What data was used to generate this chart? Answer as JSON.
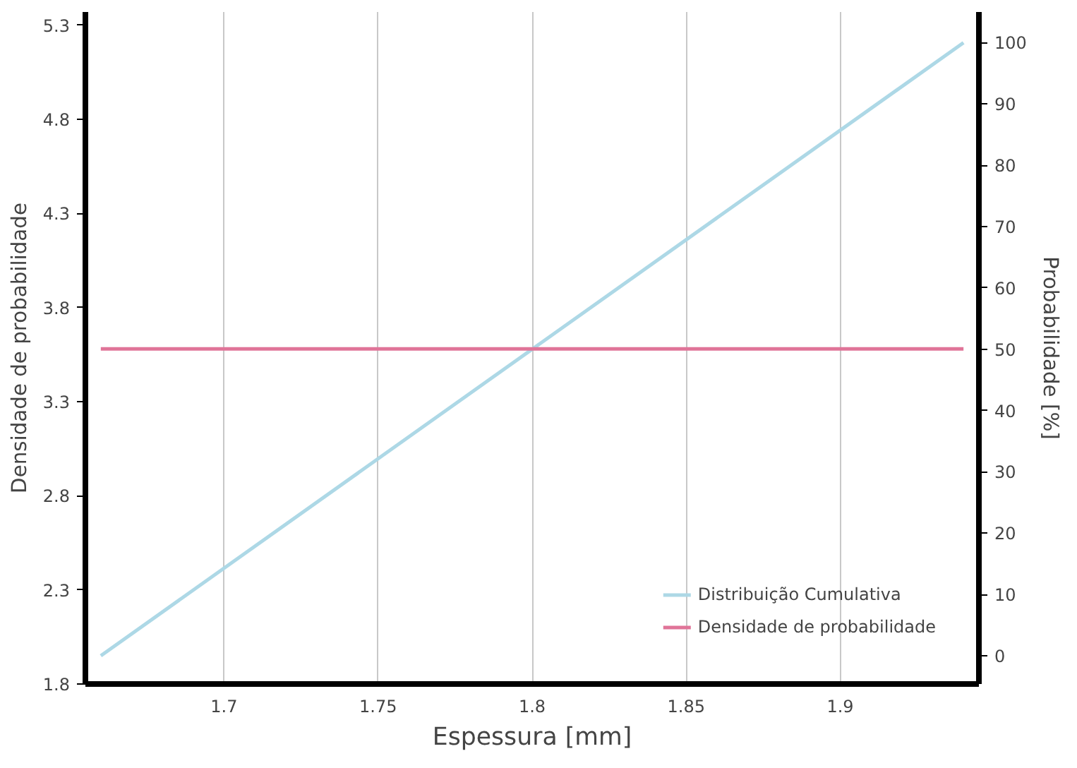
{
  "chart_data": {
    "type": "line",
    "xlabel": "Espessura [mm]",
    "ylabel": "Densidade de probabilidade",
    "y2label": "Probabilidade [%]",
    "x": [
      1.66,
      1.94
    ],
    "series": [
      {
        "name": "Distribuição Cumulativa",
        "color": "#add8e6",
        "axis": "y2",
        "values": [
          0,
          100
        ]
      },
      {
        "name": "Densidade de probabilidade",
        "color": "#e07498",
        "values": [
          3.58,
          3.58
        ]
      }
    ],
    "xlim": [
      1.655,
      1.945
    ],
    "xticks": [
      1.7,
      1.75,
      1.8,
      1.85,
      1.9
    ],
    "ylim": [
      1.8,
      5.37
    ],
    "yticks": [
      1.8,
      2.3,
      2.8,
      3.3,
      3.8,
      4.3,
      4.8,
      5.3
    ],
    "y2lim": [
      -4.6,
      105
    ],
    "y2ticks": [
      0,
      10,
      20,
      30,
      40,
      50,
      60,
      70,
      80,
      90,
      100
    ],
    "grid": "x",
    "legend": "bottom right",
    "line_style": "solid",
    "marker": "none"
  }
}
